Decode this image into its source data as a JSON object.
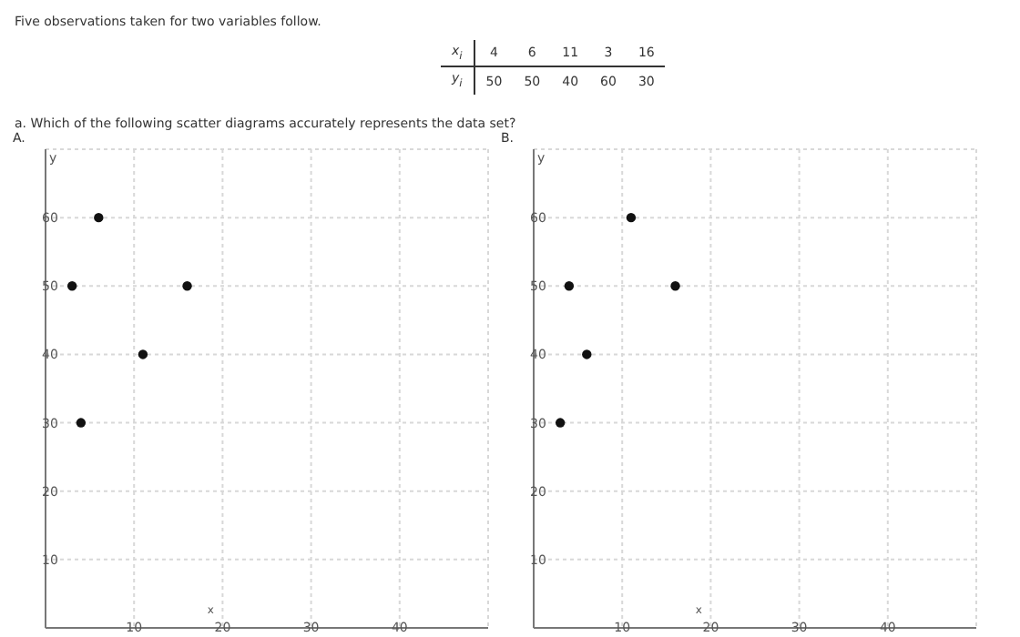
{
  "chart_data": [
    {
      "type": "other",
      "title": "Five observations taken for two variables follow.",
      "xlabel": "x$_{i}$",
      "ylabel": "y$_{i}$",
      "categories": [
        "4",
        "6",
        "11",
        "3",
        "16"
      ],
      "values": [
        50,
        50,
        40,
        60,
        30
      ],
      "data_labels": true,
      "annotations": [
        "a. Which of the following scatter diagrams accurately represents the data set?"
      ]
    },
    {
      "type": "scatter",
      "title": "A.",
      "xlabel": "x",
      "ylabel": "y",
      "marker": "circle",
      "grid": true,
      "xlim": [
        0,
        50
      ],
      "ylim": [
        0,
        70
      ],
      "xticks": [
        10,
        20,
        30,
        40
      ],
      "yticks": [
        10,
        20,
        30,
        40,
        50,
        60
      ],
      "series": [
        {
          "color": "#111111",
          "x": [
            3,
            6,
            16,
            11,
            4
          ],
          "values": [
            50,
            60,
            50,
            40,
            30
          ]
        }
      ]
    },
    {
      "type": "scatter",
      "title": "B.",
      "xlabel": "x",
      "ylabel": "y",
      "marker": "circle",
      "grid": true,
      "xlim": [
        0,
        50
      ],
      "ylim": [
        0,
        70
      ],
      "xticks": [
        10,
        20,
        30,
        40
      ],
      "yticks": [
        10,
        20,
        30,
        40,
        50,
        60
      ],
      "series": [
        {
          "color": "#111111",
          "x": [
            4,
            11,
            16,
            6,
            3
          ],
          "values": [
            50,
            60,
            50,
            40,
            30
          ]
        }
      ]
    }
  ]
}
